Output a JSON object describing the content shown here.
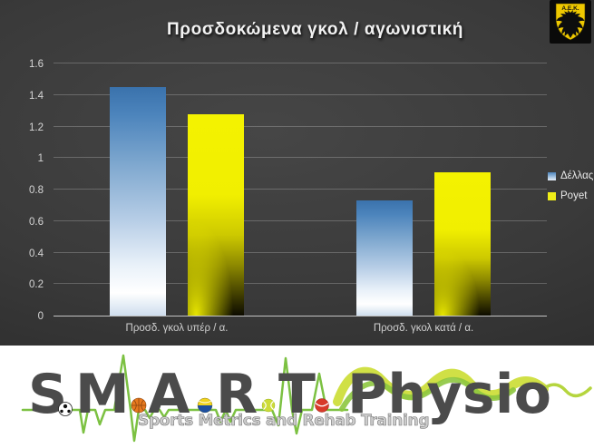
{
  "title": "Προσδοκώμενα γκολ / αγωνιστική",
  "badge": {
    "club": "Α.Ε.Κ."
  },
  "chart_data": {
    "type": "bar",
    "title": "Προσδοκώμενα γκολ / αγωνιστική",
    "categories": [
      "Προσδ. γκολ υπέρ / α.",
      "Προσδ. γκολ κατά / α."
    ],
    "series": [
      {
        "name": "Δέλλας",
        "values": [
          1.45,
          0.73
        ]
      },
      {
        "name": "Poyet",
        "values": [
          1.28,
          0.91
        ]
      }
    ],
    "xlabel": "",
    "ylabel": "",
    "ylim": [
      0,
      1.6
    ],
    "yticks": [
      0,
      0.2,
      0.4,
      0.6,
      0.8,
      1,
      1.2,
      1.4,
      1.6
    ],
    "grid": true,
    "legend_position": "right"
  },
  "colors": {
    "background": "#3a3a3a",
    "dellas_top": "#3d74ab",
    "dellas_bottom": "#ffffff",
    "poyet_top": "#f2f000",
    "poyet_bottom": "#0c0b00",
    "gridline": "#6f6f6f",
    "aek_yellow": "#eec800",
    "ekg_green": "#7cc142",
    "ribbon_yellow": "#cede3c",
    "ribbon_green": "#8dc63f",
    "brand_gray": "#4b4b4b"
  },
  "footer": {
    "brand_letters": [
      "S",
      "M",
      "A",
      "R",
      "T"
    ],
    "brand_word": "Physio",
    "tagline": "Sports Metrics and Rehab Training",
    "ball_icons": [
      "soccer-ball-icon",
      "basketball-icon",
      "volleyball-icon",
      "tennis-ball-icon",
      "cricket-ball-icon"
    ]
  }
}
